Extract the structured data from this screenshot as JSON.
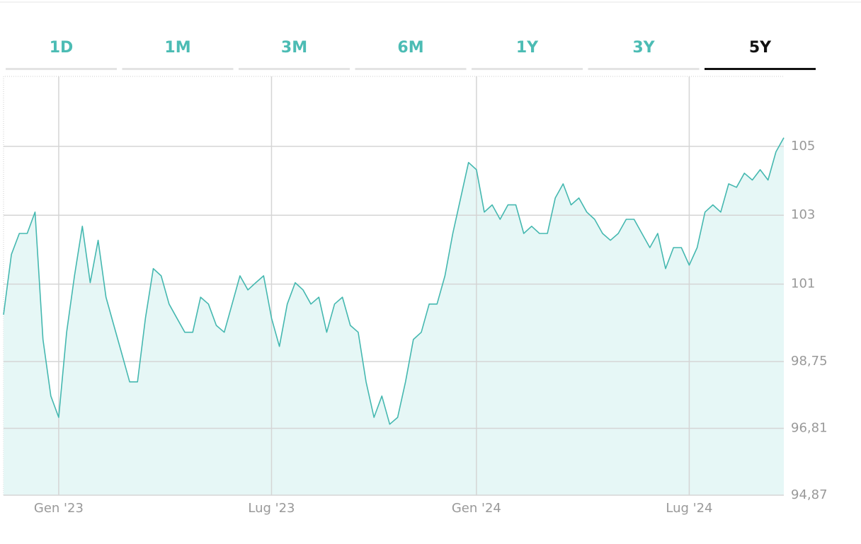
{
  "tabs": [
    {
      "label": "1D",
      "active": false
    },
    {
      "label": "1M",
      "active": false
    },
    {
      "label": "3M",
      "active": false
    },
    {
      "label": "6M",
      "active": false
    },
    {
      "label": "1Y",
      "active": false
    },
    {
      "label": "3Y",
      "active": false
    },
    {
      "label": "5Y",
      "active": true
    }
  ],
  "chart_data": {
    "type": "area",
    "color": "#45b8b0",
    "fill": "#e6f7f6",
    "grid": true,
    "xlim": [
      0,
      99
    ],
    "xticks": [
      {
        "value": 7,
        "label": "Gen '23"
      },
      {
        "value": 34,
        "label": "Lug '23"
      },
      {
        "value": 60,
        "label": "Gen '24"
      },
      {
        "value": 87,
        "label": "Lug '24"
      }
    ],
    "ylim": [
      94.87,
      107.03
    ],
    "yticks": [
      {
        "value": 94.87,
        "label": "94,87"
      },
      {
        "value": 96.81,
        "label": "96,81"
      },
      {
        "value": 98.75,
        "label": "98,75"
      },
      101,
      103,
      105
    ],
    "values": [
      100.11,
      101.86,
      102.47,
      102.47,
      103.09,
      99.39,
      97.75,
      97.13,
      99.6,
      101.24,
      102.68,
      101.04,
      102.27,
      100.62,
      99.8,
      98.98,
      98.16,
      98.16,
      100.01,
      101.45,
      101.24,
      100.42,
      100.01,
      99.6,
      99.6,
      100.62,
      100.42,
      99.8,
      99.6,
      100.42,
      101.24,
      100.83,
      101.04,
      101.24,
      100.01,
      99.19,
      100.42,
      101.04,
      100.83,
      100.42,
      100.62,
      99.6,
      100.42,
      100.62,
      99.8,
      99.6,
      98.16,
      97.13,
      97.75,
      96.93,
      97.13,
      98.16,
      99.39,
      99.6,
      100.42,
      100.42,
      101.24,
      102.47,
      103.5,
      104.53,
      104.32,
      103.09,
      103.3,
      102.88,
      103.3,
      103.3,
      102.47,
      102.68,
      102.47,
      102.47,
      103.5,
      103.91,
      103.3,
      103.5,
      103.09,
      102.88,
      102.47,
      102.27,
      102.47,
      102.88,
      102.88,
      102.47,
      102.06,
      102.47,
      101.45,
      102.06,
      102.06,
      101.55,
      102.06,
      103.09,
      103.3,
      103.09,
      103.91,
      103.81,
      104.22,
      104.02,
      104.32,
      104.02,
      104.84,
      105.25
    ]
  }
}
